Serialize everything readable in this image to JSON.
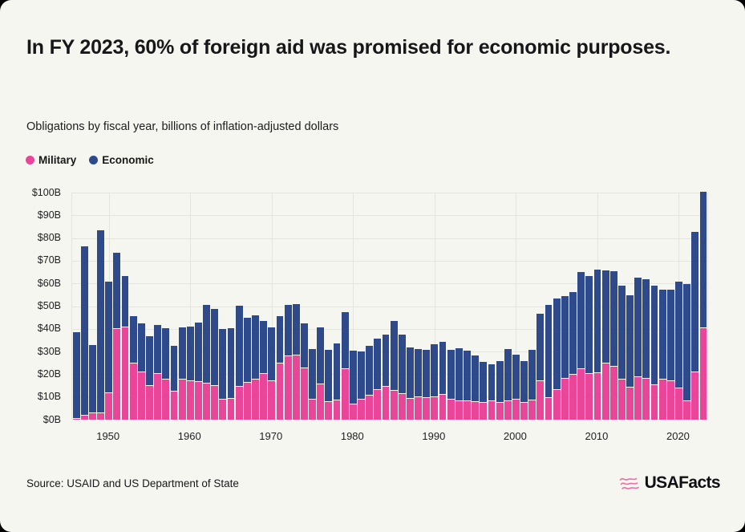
{
  "card": {
    "title": "In FY 2023, 60% of foreign aid was promised for economic purposes.",
    "subtitle": "Obligations by fiscal year, billions of inflation-adjusted dollars",
    "source": "Source: USAID and US Department of State",
    "logo_text": "USAFacts"
  },
  "colors": {
    "military": "#E94699",
    "economic": "#2F4A8A",
    "background": "#F6F6F0",
    "gridline": "#E5E5DE",
    "text": "#17171a",
    "logo_pink": "#EE6DA8"
  },
  "legend": [
    {
      "label": "Military",
      "color": "#E94699"
    },
    {
      "label": "Economic",
      "color": "#2F4A8A"
    }
  ],
  "chart_data": {
    "type": "bar",
    "stacked": true,
    "title": "Obligations by fiscal year, billions of inflation-adjusted dollars",
    "xlabel": "Fiscal year",
    "ylabel": "Billions of inflation-adjusted dollars",
    "ylim": [
      0,
      100
    ],
    "grid": true,
    "legend_position": "top-left",
    "categories": [
      1946,
      1947,
      1948,
      1949,
      1950,
      1951,
      1952,
      1953,
      1954,
      1955,
      1956,
      1957,
      1958,
      1959,
      1960,
      1961,
      1962,
      1963,
      1964,
      1965,
      1966,
      1967,
      1968,
      1969,
      1970,
      1971,
      1972,
      1973,
      1974,
      1975,
      1976,
      1977,
      1978,
      1979,
      1980,
      1981,
      1982,
      1983,
      1984,
      1985,
      1986,
      1987,
      1988,
      1989,
      1990,
      1991,
      1992,
      1993,
      1994,
      1995,
      1996,
      1997,
      1998,
      1999,
      2000,
      2001,
      2002,
      2003,
      2004,
      2005,
      2006,
      2007,
      2008,
      2009,
      2010,
      2011,
      2012,
      2013,
      2014,
      2015,
      2016,
      2017,
      2018,
      2019,
      2020,
      2021,
      2022,
      2023
    ],
    "series": [
      {
        "name": "Military",
        "color": "#E94699",
        "values": [
          0.3,
          1.6,
          3.0,
          2.9,
          11.7,
          40.1,
          40.7,
          24.7,
          20.9,
          14.7,
          20.2,
          17.5,
          12.5,
          17.5,
          17.0,
          16.7,
          16.0,
          15.0,
          9.0,
          9.2,
          14.5,
          16.2,
          17.8,
          20.3,
          16.8,
          24.7,
          27.8,
          28.3,
          22.6,
          8.7,
          15.7,
          7.9,
          8.5,
          22.2,
          6.8,
          8.8,
          10.5,
          13.2,
          14.4,
          12.8,
          11.3,
          9.2,
          9.9,
          9.7,
          10.0,
          11.1,
          8.7,
          8.2,
          8.2,
          7.8,
          7.6,
          8.2,
          7.6,
          8.2,
          8.7,
          7.6,
          8.4,
          16.8,
          9.7,
          13.2,
          18.2,
          19.7,
          22.2,
          20.3,
          20.6,
          24.7,
          23.5,
          17.6,
          14.1,
          18.6,
          18.0,
          15.2,
          17.6,
          17.0,
          13.7,
          8.2,
          21.0,
          40.2
        ]
      },
      {
        "name": "Economic",
        "color": "#2F4A8A",
        "values": [
          38.2,
          74.6,
          29.9,
          80.6,
          49.0,
          33.5,
          22.6,
          20.8,
          21.5,
          22.1,
          21.6,
          22.8,
          19.9,
          23.2,
          24.0,
          26.0,
          34.5,
          33.7,
          30.8,
          31.0,
          35.6,
          28.7,
          28.2,
          23.1,
          23.9,
          21.0,
          22.7,
          22.5,
          19.7,
          22.5,
          25.0,
          22.8,
          25.1,
          25.3,
          23.5,
          21.4,
          21.9,
          22.5,
          23.0,
          30.8,
          26.1,
          22.5,
          21.2,
          21.2,
          23.2,
          23.1,
          22.2,
          23.4,
          22.1,
          20.5,
          17.7,
          16.2,
          18.1,
          23.0,
          19.9,
          18.3,
          22.5,
          30.0,
          40.8,
          40.1,
          36.2,
          36.4,
          42.7,
          42.8,
          45.5,
          41.0,
          41.9,
          41.3,
          40.8,
          43.9,
          43.8,
          43.9,
          39.6,
          40.2,
          47.1,
          51.6,
          61.6,
          60.1
        ]
      }
    ],
    "y_ticks": [
      {
        "value": 0,
        "label": "$0B"
      },
      {
        "value": 10,
        "label": "$10B"
      },
      {
        "value": 20,
        "label": "$20B"
      },
      {
        "value": 30,
        "label": "$30B"
      },
      {
        "value": 40,
        "label": "$40B"
      },
      {
        "value": 50,
        "label": "$50B"
      },
      {
        "value": 60,
        "label": "$60B"
      },
      {
        "value": 70,
        "label": "$70B"
      },
      {
        "value": 80,
        "label": "$80B"
      },
      {
        "value": 90,
        "label": "$90B"
      },
      {
        "value": 100,
        "label": "$100B"
      }
    ],
    "x_tick_years": [
      1950,
      1960,
      1970,
      1980,
      1990,
      2000,
      2010,
      2020
    ]
  }
}
